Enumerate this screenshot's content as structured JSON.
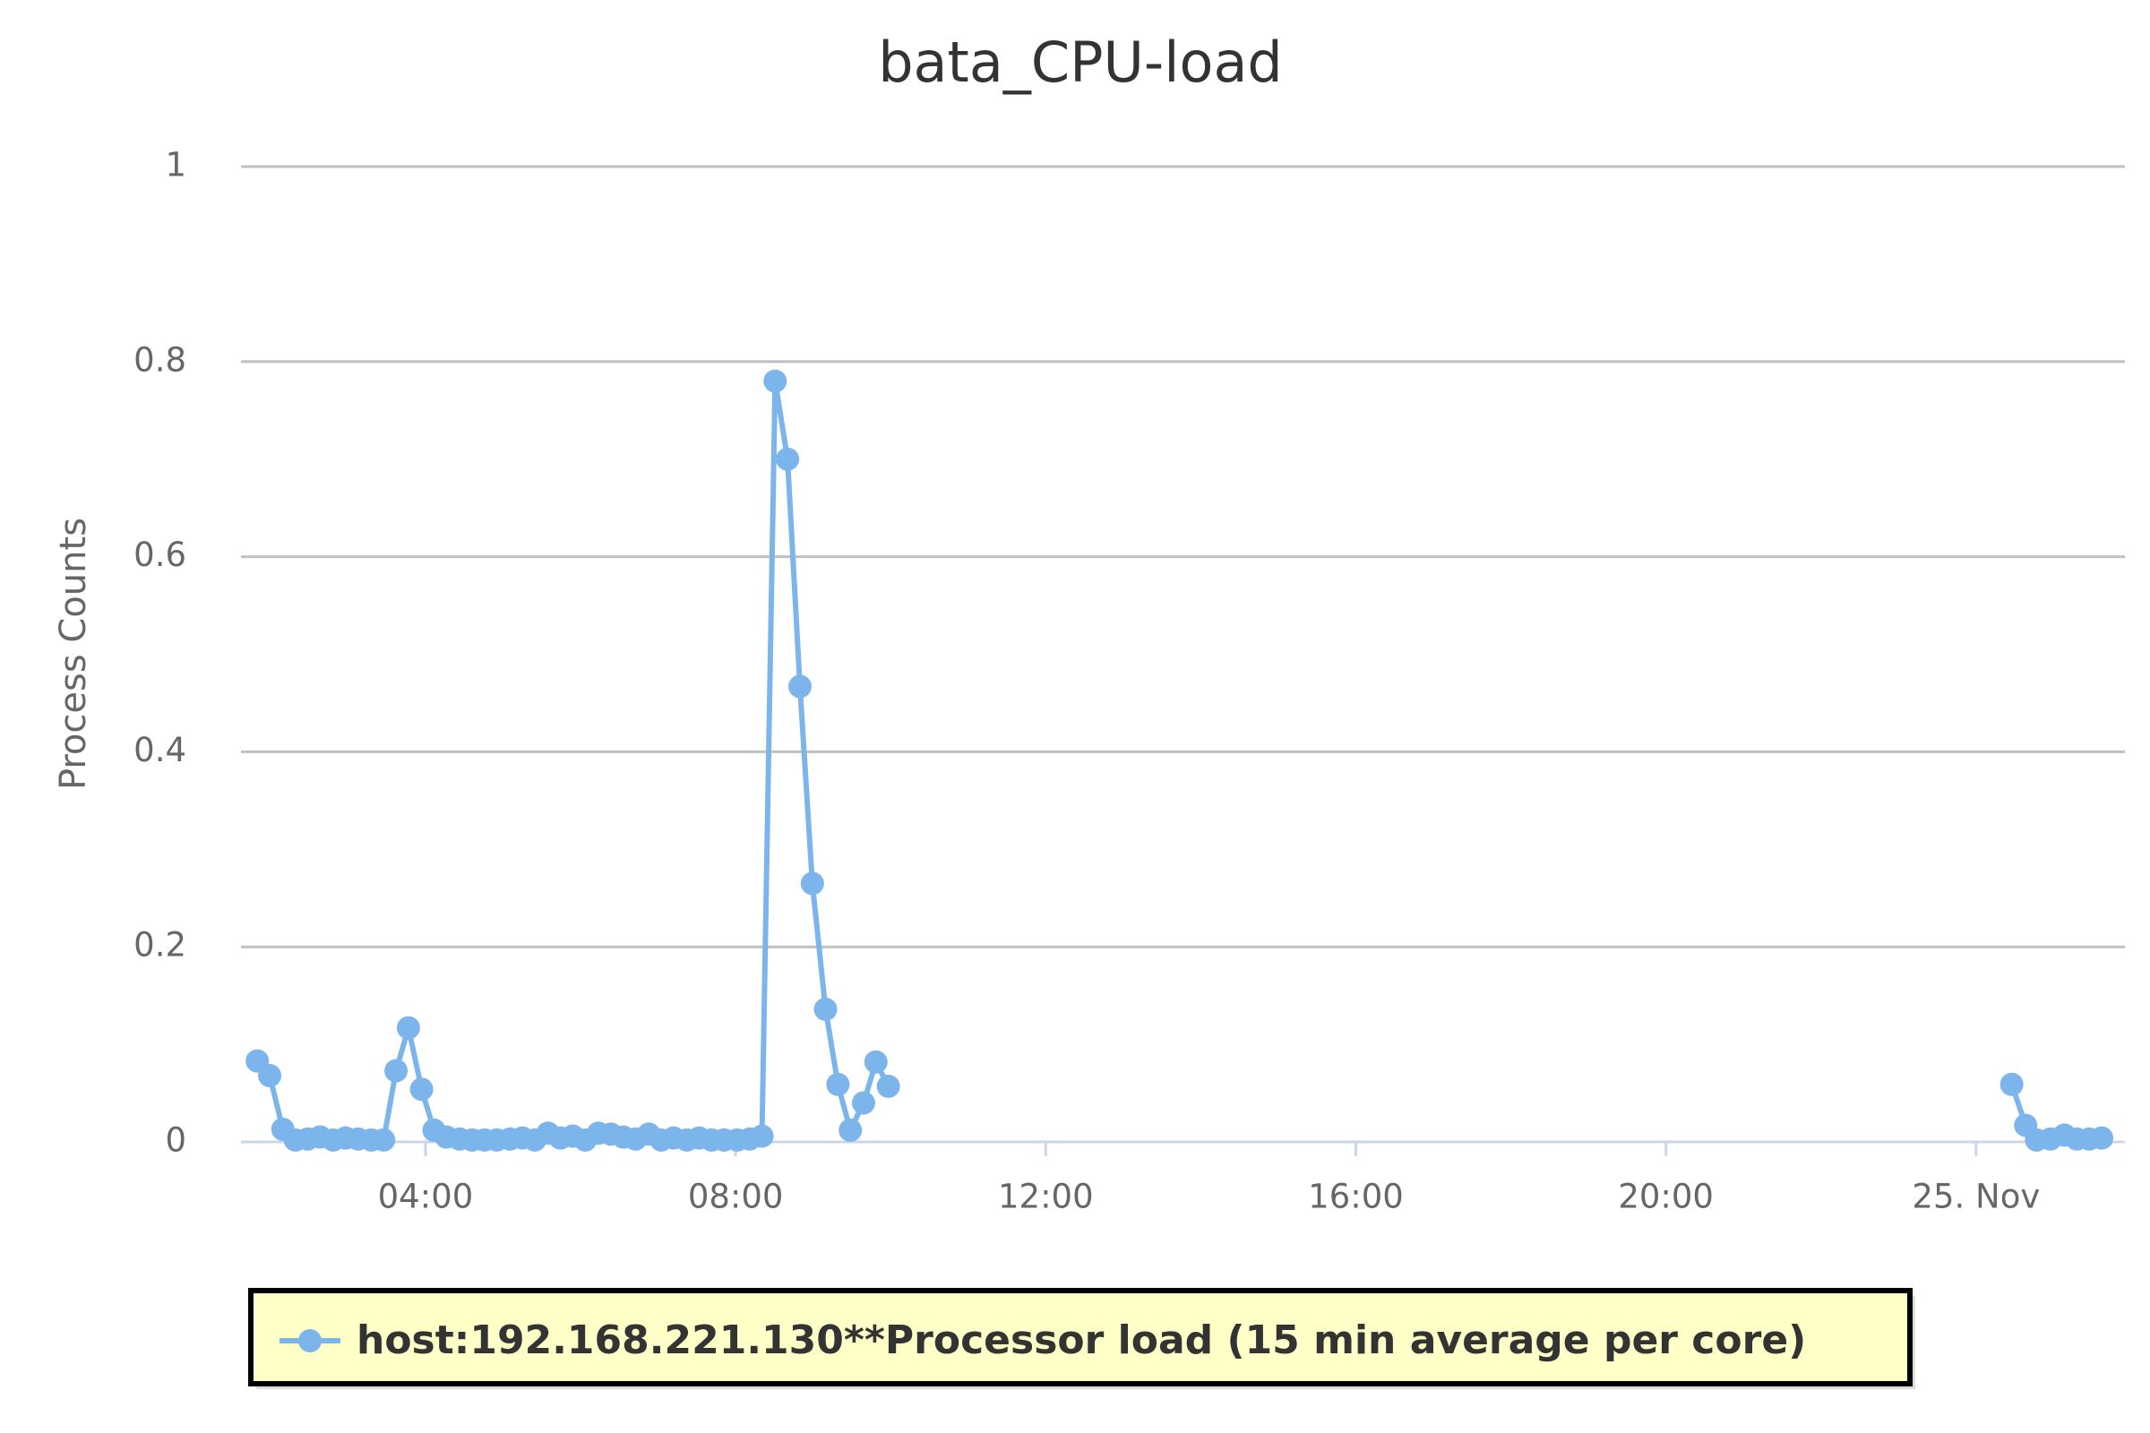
{
  "chart_data": {
    "type": "line",
    "title": "bata_CPU-load",
    "y_label": "Process Counts",
    "x": [
      1.83,
      1.99,
      2.16,
      2.32,
      2.48,
      2.64,
      2.81,
      2.97,
      3.13,
      3.3,
      3.46,
      3.62,
      3.78,
      3.95,
      4.11,
      4.27,
      4.44,
      4.6,
      4.76,
      4.92,
      5.09,
      5.25,
      5.41,
      5.58,
      5.74,
      5.9,
      6.06,
      6.23,
      6.39,
      6.55,
      6.71,
      6.88,
      7.04,
      7.2,
      7.37,
      7.53,
      7.69,
      7.85,
      8.02,
      8.18,
      8.34,
      8.51,
      8.67,
      8.83,
      8.99,
      9.16,
      9.32,
      9.48,
      9.65,
      9.81,
      9.97,
      10.13,
      24.46,
      24.64,
      24.78,
      24.96,
      25.14,
      25.3,
      25.46,
      25.62
    ],
    "series": [
      {
        "name": "host:192.168.221.130**Processor load (15 min average per core)",
        "color": "#7cb5ec",
        "values": [
          0.083,
          0.068,
          0.013,
          0.002,
          0.003,
          0.005,
          0.002,
          0.004,
          0.003,
          0.002,
          0.002,
          0.073,
          0.117,
          0.054,
          0.012,
          0.005,
          0.003,
          0.002,
          0.002,
          0.002,
          0.003,
          0.004,
          0.002,
          0.009,
          0.004,
          0.006,
          0.002,
          0.009,
          0.008,
          0.005,
          0.003,
          0.008,
          0.002,
          0.004,
          0.002,
          0.004,
          0.002,
          0.002,
          0.002,
          0.003,
          0.006,
          0.78,
          0.7,
          0.467,
          0.265,
          0.136,
          0.059,
          0.012,
          0.04,
          0.082,
          0.057,
          null,
          0.059,
          0.017,
          0.002,
          0.003,
          0.007,
          0.003,
          0.003,
          0.004
        ]
      }
    ],
    "xlim": [
      1.62,
      25.92
    ],
    "xticks": [
      {
        "value": 4,
        "label": "04:00"
      },
      {
        "value": 8,
        "label": "08:00"
      },
      {
        "value": 12,
        "label": "12:00"
      },
      {
        "value": 16,
        "label": "16:00"
      },
      {
        "value": 20,
        "label": "20:00"
      },
      {
        "value": 24,
        "label": "25. Nov"
      }
    ],
    "ylim": [
      0,
      1
    ],
    "yticks": [
      0,
      0.2,
      0.4,
      0.6,
      0.8,
      1
    ],
    "grid": true
  }
}
